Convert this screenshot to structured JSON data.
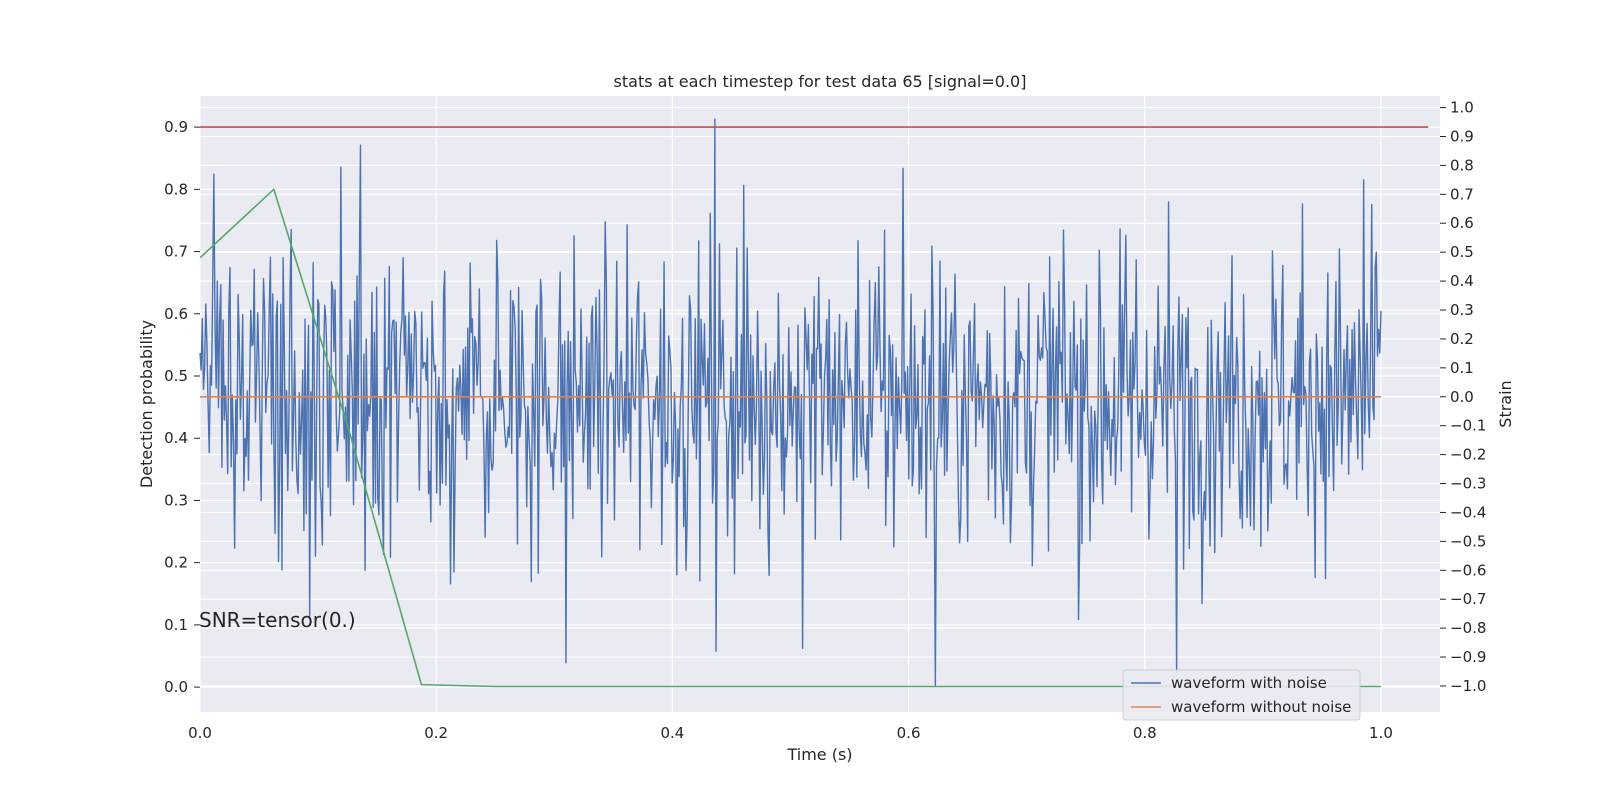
{
  "chart_data": {
    "type": "line",
    "title": "stats at each timestep for test data 65 [signal=0.0]",
    "xlabel": "Time (s)",
    "ylabel_left": "Detection probability",
    "ylabel_right": "Strain",
    "xlim": [
      0.0,
      1.05
    ],
    "ylim_left": [
      -0.04,
      0.95
    ],
    "ylim_right": [
      -1.09,
      1.04
    ],
    "x_ticks": [
      "0.0",
      "0.2",
      "0.4",
      "0.6",
      "0.8",
      "1.0"
    ],
    "y_ticks_left": [
      "0.0",
      "0.1",
      "0.2",
      "0.3",
      "0.4",
      "0.5",
      "0.6",
      "0.7",
      "0.8",
      "0.9"
    ],
    "y_ticks_right": [
      "1.0",
      "0.9",
      "0.8",
      "0.7",
      "0.6",
      "0.5",
      "0.4",
      "0.3",
      "0.2",
      "0.1",
      "0.0",
      "−0.1",
      "−0.2",
      "−0.3",
      "−0.4",
      "−0.5",
      "−0.6",
      "−0.7",
      "−0.8",
      "−0.9",
      "−1.0"
    ],
    "grid": true,
    "legend_position": "lower-right",
    "annotation": "SNR=tensor(0.)",
    "series": [
      {
        "name": "waveform with noise",
        "axis": "right",
        "color": "#4c72b0",
        "x_start": 0.0,
        "x_end": 1.0,
        "anchors": [
          {
            "x": 0.012,
            "y": 0.77
          },
          {
            "x": 0.066,
            "y": -0.57
          },
          {
            "x": 0.093,
            "y": -0.76
          },
          {
            "x": 0.136,
            "y": 0.87
          },
          {
            "x": 0.14,
            "y": -0.6
          },
          {
            "x": 0.16,
            "y": 0.45
          },
          {
            "x": 0.31,
            "y": -0.92
          },
          {
            "x": 0.436,
            "y": 0.96
          },
          {
            "x": 0.437,
            "y": -0.88
          },
          {
            "x": 0.51,
            "y": -0.87
          },
          {
            "x": 0.595,
            "y": 0.79
          },
          {
            "x": 0.623,
            "y": -1.0
          },
          {
            "x": 0.744,
            "y": -0.77
          },
          {
            "x": 0.827,
            "y": -0.96
          },
          {
            "x": 0.985,
            "y": 0.75
          },
          {
            "x": 0.996,
            "y": 0.5
          }
        ],
        "amplitude_typical": 0.35
      },
      {
        "name": "waveform without noise",
        "axis": "right",
        "color": "#dd8452",
        "x": [
          0.0,
          1.0
        ],
        "y": [
          0.0,
          0.0
        ]
      },
      {
        "name": "",
        "axis": "left",
        "color": "#55a868",
        "x": [
          0.0,
          0.0625,
          0.125,
          0.1875,
          0.25,
          0.3125,
          0.375,
          0.4375,
          0.5,
          0.5625,
          0.625,
          0.6875,
          0.75,
          0.8125,
          0.875,
          0.9375,
          1.0
        ],
        "y": [
          0.69,
          0.8,
          0.42,
          0.004,
          0.001,
          0.001,
          0.001,
          0.001,
          0.001,
          0.001,
          0.001,
          0.001,
          0.001,
          0.001,
          0.001,
          0.001,
          0.001
        ]
      },
      {
        "name": "",
        "axis": "left",
        "color": "#c44e52",
        "x": [
          0.0,
          1.04
        ],
        "y": [
          0.9,
          0.9
        ]
      }
    ],
    "legend": [
      "waveform with noise",
      "waveform without noise"
    ]
  }
}
